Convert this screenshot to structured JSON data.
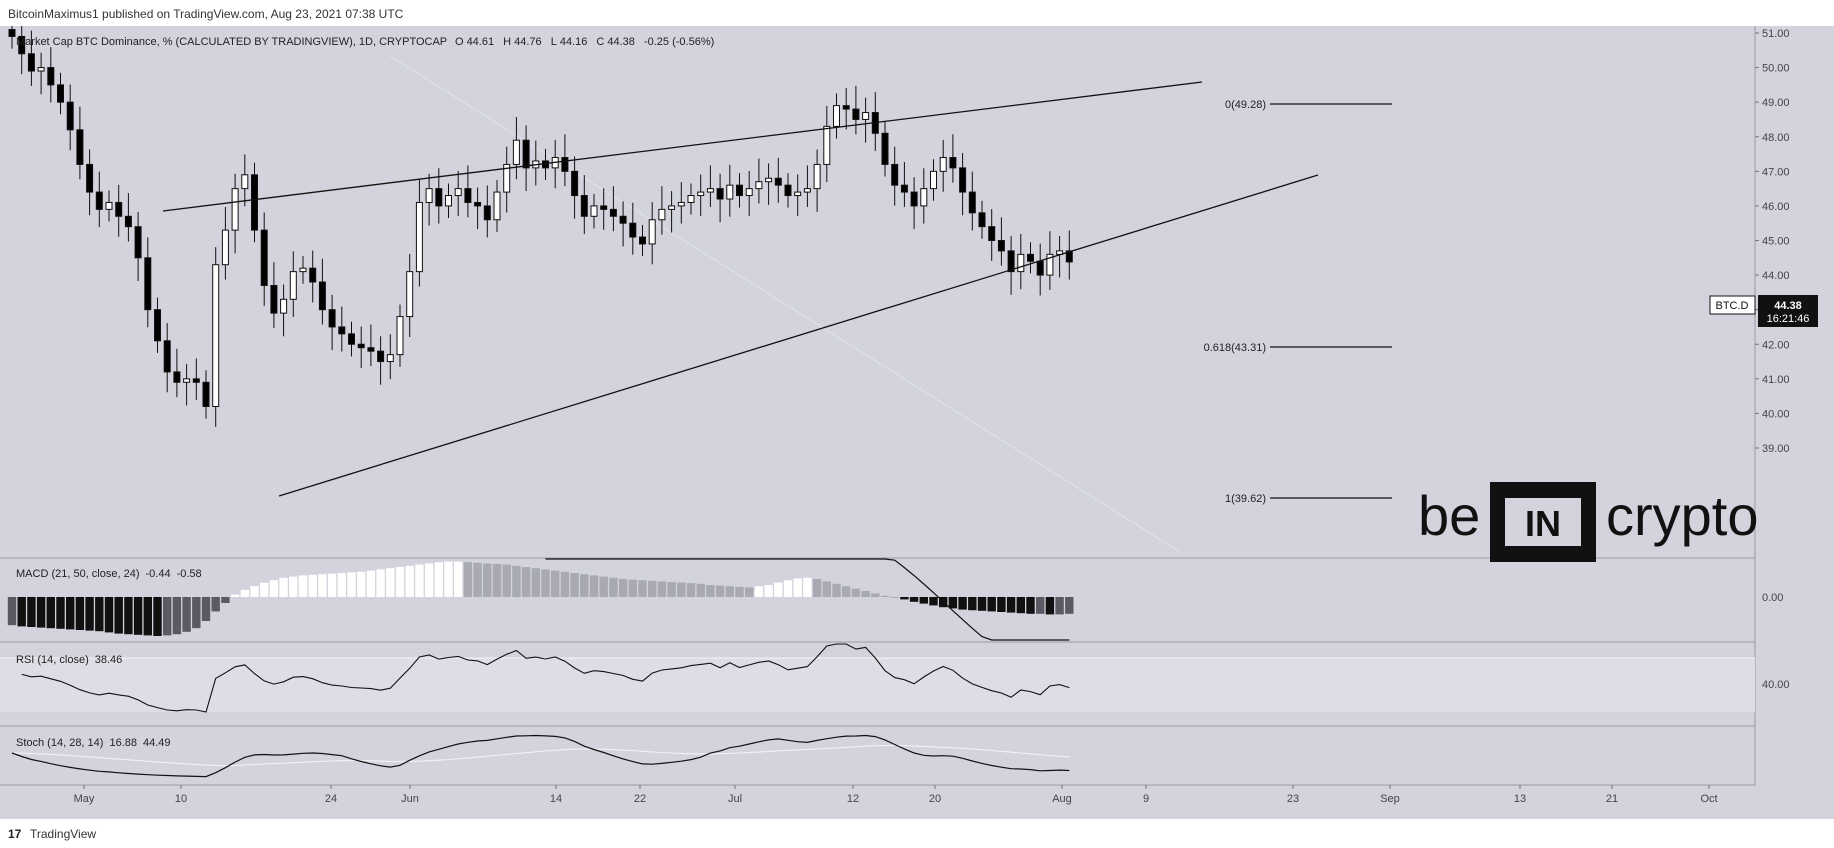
{
  "header": {
    "published": "BitcoinMaximus1 published on TradingView.com, Aug 23, 2021 07:38 UTC"
  },
  "legend": {
    "title": "Market Cap BTC Dominance, % (CALCULATED BY TRADINGVIEW), 1D, CRYPTOCAP",
    "o_label": "O",
    "o": "44.61",
    "h_label": "H",
    "h": "44.76",
    "l_label": "L",
    "l": "44.16",
    "c_label": "C",
    "c": "44.38",
    "change": "-0.25 (-0.56%)"
  },
  "price_tag": {
    "symbol": "BTC.D",
    "price": "44.38",
    "countdown": "16:21:46"
  },
  "fib_labels": [
    "0(49.28)",
    "0.618(43.31)",
    "1(39.62)"
  ],
  "watermark": {
    "left": "be",
    "mid": "IN",
    "right": "crypto"
  },
  "macd": {
    "label": "MACD (21, 50, close, 24)",
    "v1": "-0.44",
    "v2": "-0.58",
    "axis": "0.00"
  },
  "rsi": {
    "label": "RSI (14, close)",
    "value": "38.46",
    "axis": "40.00"
  },
  "stoch": {
    "label": "Stoch (14, 28, 14)",
    "v1": "16.88",
    "v2": "44.49"
  },
  "footer": {
    "logo": "17",
    "brand": "TradingView"
  },
  "colors": {
    "background": "#d2d3dc",
    "up": "#ffffff",
    "down": "#000000"
  },
  "chart_data": {
    "type": "candlestick",
    "y_ticks": [
      "51.00",
      "50.00",
      "49.00",
      "48.00",
      "47.00",
      "46.00",
      "45.00",
      "44.00",
      "43.00",
      "42.00",
      "41.00",
      "40.00",
      "39.00"
    ],
    "x_ticks": [
      "May",
      "10",
      "24",
      "Jun",
      "14",
      "22",
      "Jul",
      "12",
      "20",
      "Aug",
      "9",
      "23",
      "Sep",
      "13",
      "21",
      "Oct"
    ],
    "close_series": [
      50.9,
      50.4,
      49.9,
      50.0,
      49.5,
      49.0,
      48.2,
      47.2,
      46.4,
      45.9,
      46.1,
      45.7,
      45.4,
      44.5,
      43.0,
      42.1,
      41.2,
      40.9,
      41.0,
      40.9,
      40.2,
      44.3,
      45.3,
      46.5,
      46.9,
      45.3,
      43.7,
      42.9,
      43.3,
      44.1,
      44.2,
      43.8,
      43.0,
      42.5,
      42.3,
      42.0,
      41.9,
      41.8,
      41.5,
      41.7,
      42.8,
      44.1,
      46.1,
      46.5,
      46.0,
      46.3,
      46.5,
      46.1,
      46.0,
      45.6,
      46.4,
      47.2,
      47.9,
      47.1,
      47.3,
      47.1,
      47.4,
      47.0,
      46.3,
      45.7,
      46.0,
      45.9,
      45.7,
      45.5,
      45.1,
      44.9,
      45.6,
      45.9,
      46.0,
      46.1,
      46.3,
      46.4,
      46.5,
      46.2,
      46.6,
      46.3,
      46.5,
      46.7,
      46.8,
      46.6,
      46.3,
      46.4,
      46.5,
      47.2,
      48.3,
      48.9,
      48.8,
      48.5,
      48.7,
      48.1,
      47.2,
      46.6,
      46.4,
      46.0,
      46.5,
      47.0,
      47.4,
      47.1,
      46.4,
      45.8,
      45.4,
      45.0,
      44.7,
      44.1,
      44.6,
      44.4,
      44.0,
      44.6,
      44.7,
      44.38
    ],
    "macd_histogram": [
      -2.35,
      -2.45,
      -2.5,
      -2.55,
      -2.6,
      -2.65,
      -2.7,
      -2.75,
      -2.8,
      -2.85,
      -2.95,
      -3.05,
      -3.1,
      -3.15,
      -3.2,
      -3.25,
      -3.2,
      -3.1,
      -2.9,
      -2.6,
      -2.0,
      -1.2,
      -0.5,
      0.2,
      0.6,
      0.9,
      1.2,
      1.4,
      1.6,
      1.7,
      1.8,
      1.85,
      1.9,
      1.95,
      2.0,
      2.05,
      2.1,
      2.2,
      2.3,
      2.4,
      2.5,
      2.6,
      2.7,
      2.8,
      2.9,
      2.95,
      2.95,
      2.9,
      2.85,
      2.8,
      2.75,
      2.7,
      2.6,
      2.5,
      2.4,
      2.3,
      2.2,
      2.1,
      2.0,
      1.9,
      1.8,
      1.7,
      1.6,
      1.5,
      1.45,
      1.4,
      1.35,
      1.3,
      1.25,
      1.2,
      1.15,
      1.1,
      1.0,
      0.95,
      0.9,
      0.85,
      0.8,
      0.9,
      1.0,
      1.2,
      1.4,
      1.55,
      1.6,
      1.5,
      1.3,
      1.1,
      0.9,
      0.7,
      0.5,
      0.3,
      0.1,
      0.0,
      -0.2,
      -0.4,
      -0.55,
      -0.7,
      -0.85,
      -0.95,
      -1.05,
      -1.1,
      -1.15,
      -1.2,
      -1.25,
      -1.3,
      -1.35,
      -1.4,
      -1.4,
      -1.45,
      -1.45,
      -1.4
    ],
    "rsi_axis": 40,
    "stoch_k_last": 16.88,
    "stoch_d_last": 44.49,
    "ylim": [
      38.5,
      51.2
    ]
  }
}
